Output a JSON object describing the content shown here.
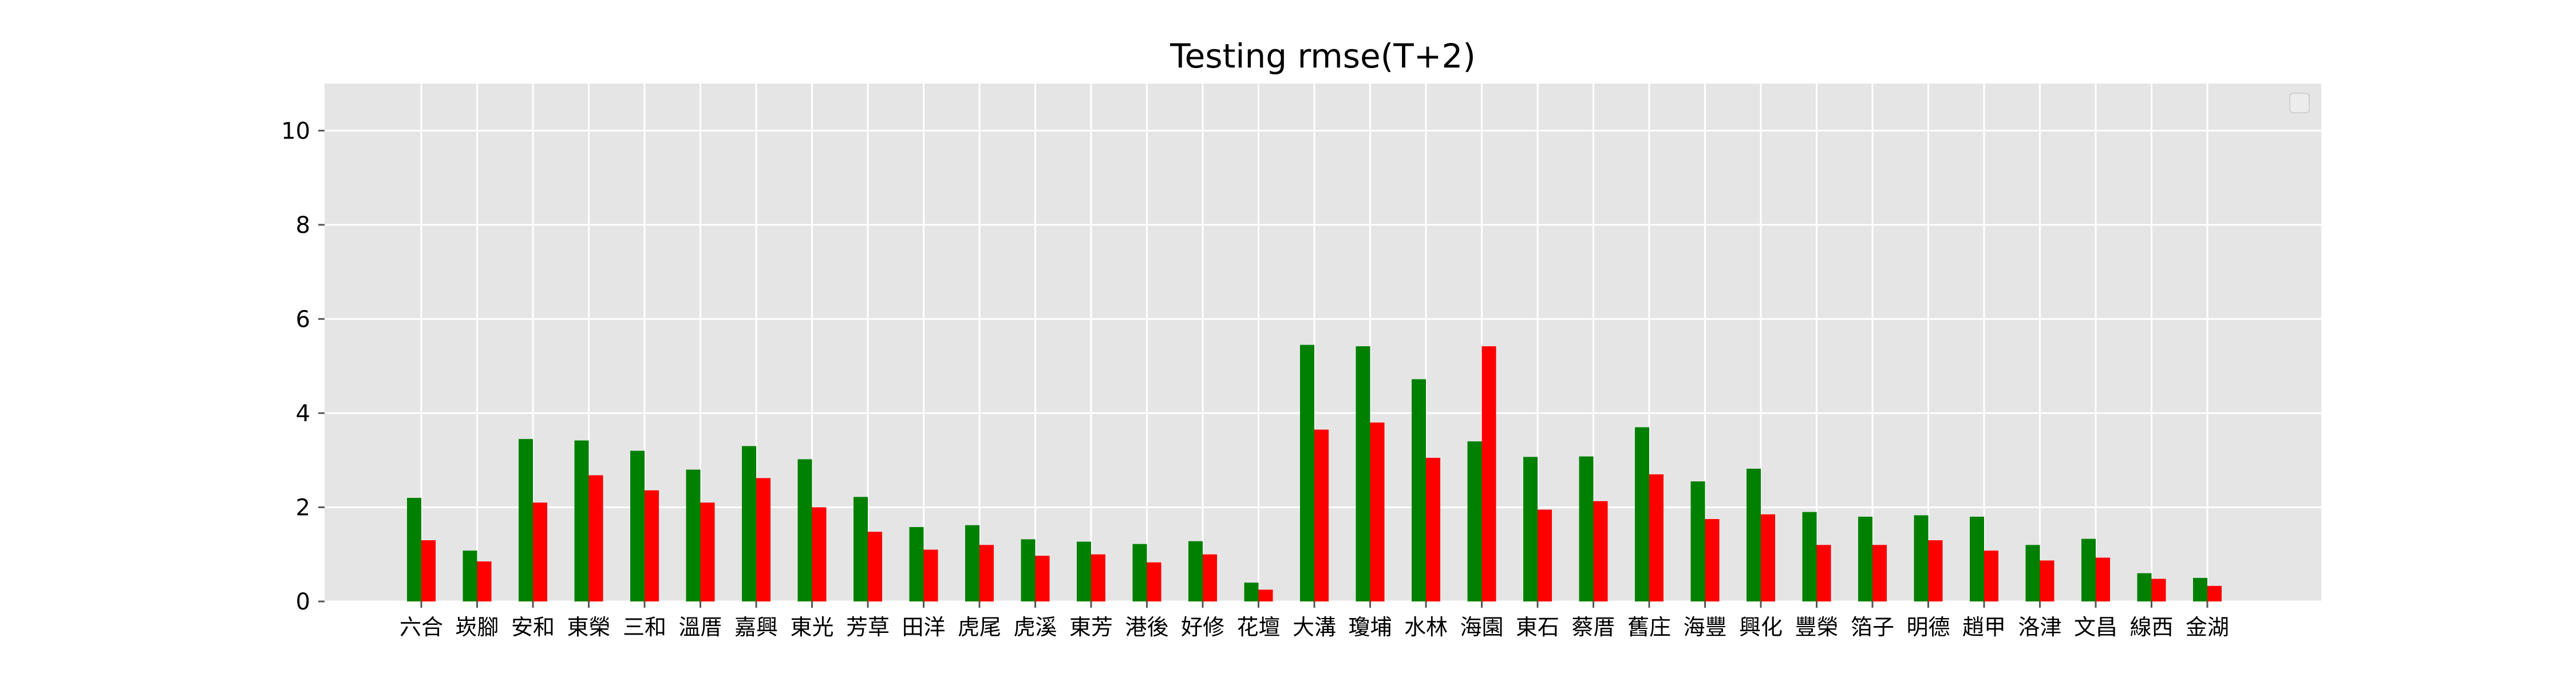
{
  "chart_data": {
    "type": "bar",
    "title": "Testing rmse(T+2)",
    "xlabel": "",
    "ylabel": "",
    "ylim": [
      0,
      11
    ],
    "yticks": [
      0,
      2,
      4,
      6,
      8,
      10
    ],
    "grid": true,
    "legend": {
      "position": "top-right",
      "entries": []
    },
    "categories": [
      "六合",
      "崁腳",
      "安和",
      "東榮",
      "三和",
      "溫厝",
      "嘉興",
      "東光",
      "芳草",
      "田洋",
      "虎尾",
      "虎溪",
      "東芳",
      "港後",
      "好修",
      "花壇",
      "大溝",
      "瓊埔",
      "水林",
      "海園",
      "東石",
      "蔡厝",
      "舊庄",
      "海豐",
      "興化",
      "豐榮",
      "箔子",
      "明德",
      "趙甲",
      "洛津",
      "文昌",
      "線西",
      "金湖"
    ],
    "series": [
      {
        "color": "#008000",
        "values": [
          2.2,
          1.08,
          3.45,
          3.42,
          3.2,
          2.8,
          3.3,
          3.02,
          2.22,
          1.58,
          1.62,
          1.32,
          1.27,
          1.22,
          1.28,
          0.4,
          5.45,
          5.42,
          4.72,
          3.4,
          3.07,
          3.08,
          3.7,
          2.55,
          2.82,
          1.9,
          1.8,
          1.83,
          1.8,
          1.2,
          1.33,
          0.6,
          0.5
        ]
      },
      {
        "color": "#ff0000",
        "values": [
          1.3,
          0.85,
          2.1,
          2.68,
          2.36,
          2.1,
          2.62,
          2.0,
          1.48,
          1.1,
          1.2,
          0.97,
          1.0,
          0.83,
          1.0,
          0.25,
          3.65,
          3.8,
          3.05,
          5.42,
          1.95,
          2.13,
          2.7,
          1.75,
          1.85,
          1.2,
          1.2,
          1.3,
          1.08,
          0.87,
          0.93,
          0.48,
          0.33
        ]
      }
    ],
    "colors": {
      "plot_background": "#e5e5e5",
      "grid": "#ffffff"
    }
  }
}
